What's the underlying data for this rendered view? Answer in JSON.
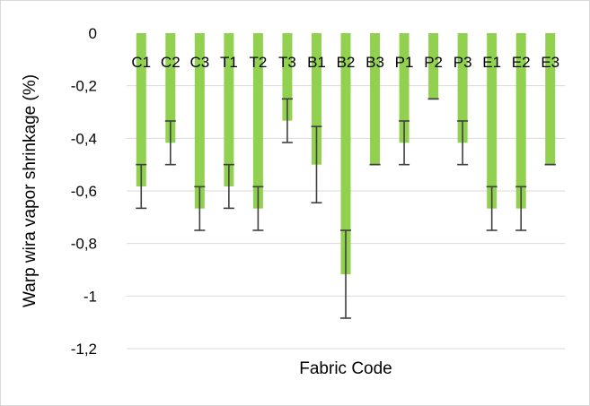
{
  "chart_data": {
    "type": "bar",
    "title": "",
    "xlabel": "Fabric Code",
    "ylabel": "Warp wira vapor shrinkage (%)",
    "ylim": [
      -1.2,
      0
    ],
    "yticks": [
      0,
      -0.2,
      -0.4,
      -0.6,
      -0.8,
      -1,
      -1.2
    ],
    "ytick_labels": [
      "0",
      "-0,2",
      "-0,4",
      "-0,6",
      "-0,8",
      "-1",
      "-1,2"
    ],
    "grid": true,
    "legend": "none",
    "bar_color": "#92d050",
    "error_bar_color": "#404040",
    "gridline_color": "#d9d9d9",
    "categories": [
      "C1",
      "C2",
      "C3",
      "T1",
      "T2",
      "T3",
      "B1",
      "B2",
      "B3",
      "P1",
      "P2",
      "P3",
      "E1",
      "E2",
      "E3"
    ],
    "values": [
      -0.583,
      -0.417,
      -0.667,
      -0.583,
      -0.667,
      -0.333,
      -0.5,
      -0.917,
      -0.5,
      -0.417,
      -0.25,
      -0.417,
      -0.667,
      -0.667,
      -0.5
    ],
    "error": [
      0.083,
      0.083,
      0.083,
      0.083,
      0.083,
      0.083,
      0.145,
      0.167,
      0,
      0.083,
      0,
      0.083,
      0.083,
      0.083,
      0
    ]
  }
}
